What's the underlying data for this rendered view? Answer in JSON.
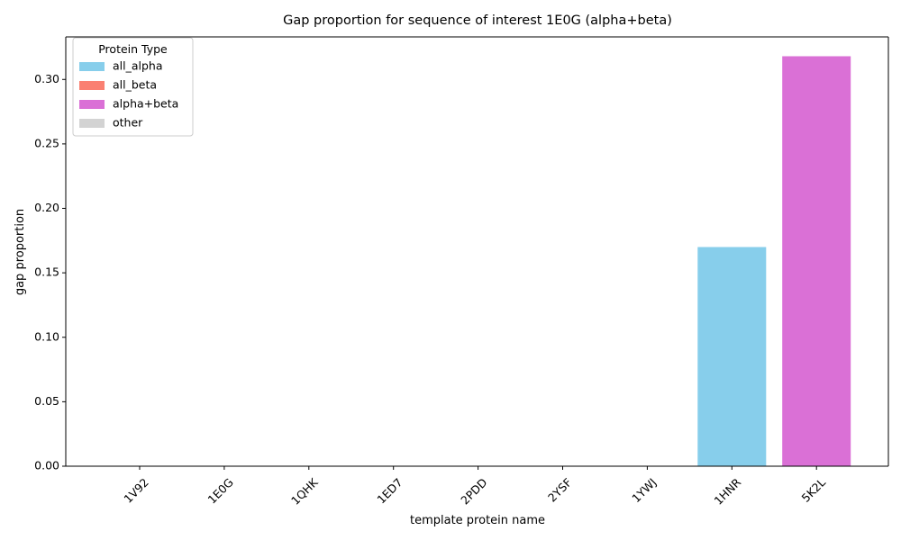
{
  "chart_data": {
    "type": "bar",
    "title": "Gap proportion for sequence of interest 1E0G (alpha+beta)",
    "xlabel": "template protein name",
    "ylabel": "gap proportion",
    "ylim": [
      0,
      0.333
    ],
    "yticks": [
      "0.00",
      "0.05",
      "0.10",
      "0.15",
      "0.20",
      "0.25",
      "0.30"
    ],
    "categories": [
      "1V92",
      "1E0G",
      "1QHK",
      "1ED7",
      "2PDD",
      "2YSF",
      "1YWJ",
      "1HNR",
      "5K2L"
    ],
    "values": [
      0,
      0,
      0,
      0,
      0,
      0,
      0,
      0.17,
      0.318
    ],
    "bar_types": [
      "other",
      "other",
      "other",
      "other",
      "other",
      "other",
      "other",
      "all_alpha",
      "alpha+beta"
    ],
    "grid": false,
    "legend": {
      "title": "Protein Type",
      "placement": "top-left",
      "entries": [
        {
          "label": "all_alpha",
          "color": "#87CEEB"
        },
        {
          "label": "all_beta",
          "color": "#FA8072"
        },
        {
          "label": "alpha+beta",
          "color": "#DA70D6"
        },
        {
          "label": "other",
          "color": "#D3D3D3"
        }
      ]
    }
  }
}
